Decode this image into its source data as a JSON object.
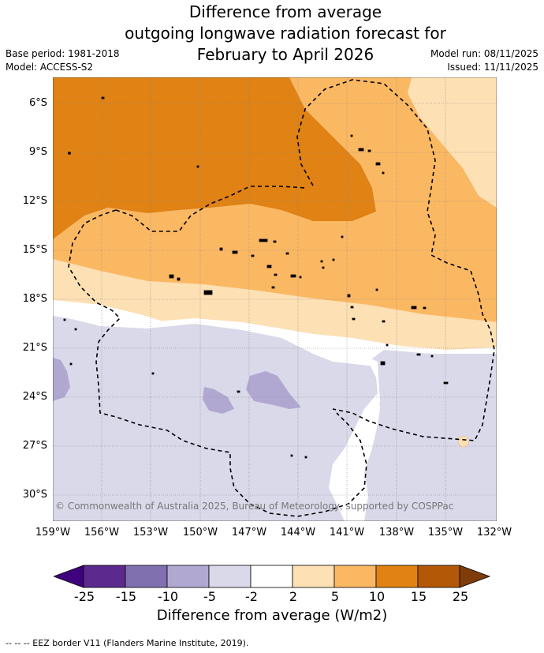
{
  "title": {
    "line1": "Difference from average",
    "line2": "outgoing longwave radiation forecast for",
    "line3": "February to April 2026"
  },
  "meta": {
    "base_period": "Base period: 1981-2018",
    "model": "Model: ACCESS-S2",
    "model_run": "Model run: 08/11/2025",
    "issued": "Issued: 11/11/2025"
  },
  "map": {
    "latitude_labels": [
      "6°S",
      "9°S",
      "12°S",
      "15°S",
      "18°S",
      "21°S",
      "24°S",
      "27°S",
      "30°S"
    ],
    "longitude_labels": [
      "159°W",
      "156°W",
      "153°W",
      "150°W",
      "147°W",
      "144°W",
      "141°W",
      "138°W",
      "135°W",
      "132°W"
    ],
    "copyright": "© Commonwealth of Australia 2025, Bureau of Meteorology, supported by COSPPac",
    "eez_line_color": "#000000",
    "land_color": "#000000"
  },
  "colorbar": {
    "title": "Difference from average (W/m2)",
    "tick_labels": [
      "-25",
      "-15",
      "-10",
      "-5",
      "-2",
      "2",
      "5",
      "10",
      "15",
      "25"
    ],
    "colors": [
      "#3f007d",
      "#5c2a8e",
      "#8070b0",
      "#b1a8d2",
      "#d9d9ea",
      "#ffffff",
      "#fde0b4",
      "#fbb863",
      "#e08214",
      "#b35806",
      "#7f3b08"
    ]
  },
  "footnote": "--  --  -- EEZ border V11 (Flanders Marine Institute, 2019)."
}
